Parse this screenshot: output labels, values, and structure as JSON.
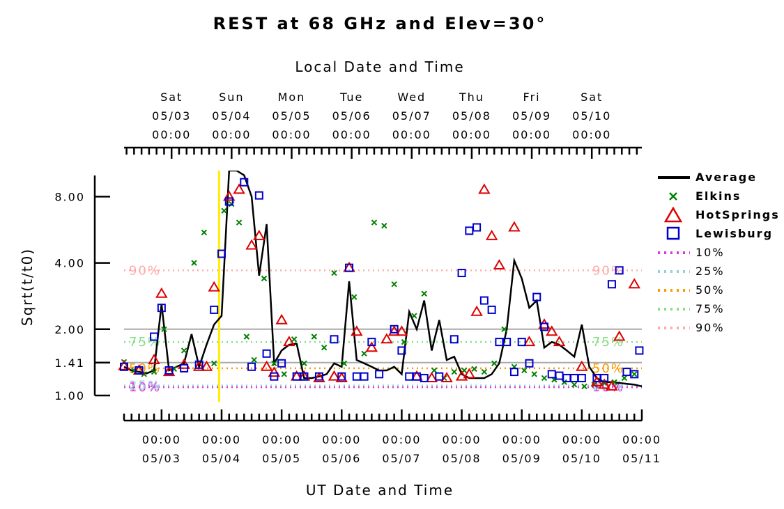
{
  "chart_data": {
    "type": "line",
    "title": "REST at 68 GHz and Elev=30°",
    "xlabel": "UT Date and Time",
    "x2label": "Local Date and Time",
    "ylabel": "Sqrt(t/t0)",
    "y_scale": "log",
    "ylim": [
      1.0,
      10.5
    ],
    "xlim": [
      "2025-05-02T09:00",
      "2025-05-11T00:00"
    ],
    "yticks": [
      {
        "value": 1.0,
        "label": "1.00"
      },
      {
        "value": 1.41,
        "label": "1.41"
      },
      {
        "value": 2.0,
        "label": "2.00"
      },
      {
        "value": 4.0,
        "label": "4.00"
      },
      {
        "value": 8.0,
        "label": "8.00"
      }
    ],
    "xticks_bottom": [
      {
        "x": "2025-05-03T00:00",
        "time": "00:00",
        "date": "05/03"
      },
      {
        "x": "2025-05-04T00:00",
        "time": "00:00",
        "date": "05/04"
      },
      {
        "x": "2025-05-05T00:00",
        "time": "00:00",
        "date": "05/05"
      },
      {
        "x": "2025-05-06T00:00",
        "time": "00:00",
        "date": "05/06"
      },
      {
        "x": "2025-05-07T00:00",
        "time": "00:00",
        "date": "05/07"
      },
      {
        "x": "2025-05-08T00:00",
        "time": "00:00",
        "date": "05/08"
      },
      {
        "x": "2025-05-09T00:00",
        "time": "00:00",
        "date": "05/09"
      },
      {
        "x": "2025-05-10T00:00",
        "time": "00:00",
        "date": "05/10"
      },
      {
        "x": "2025-05-11T00:00",
        "time": "00:00",
        "date": "05/11"
      }
    ],
    "xticks_top": [
      {
        "x": "2025-05-03T04:00",
        "day": "Sat",
        "date": "05/03",
        "time": "00:00"
      },
      {
        "x": "2025-05-04T04:00",
        "day": "Sun",
        "date": "05/04",
        "time": "00:00"
      },
      {
        "x": "2025-05-05T04:00",
        "day": "Mon",
        "date": "05/05",
        "time": "00:00"
      },
      {
        "x": "2025-05-06T04:00",
        "day": "Tue",
        "date": "05/06",
        "time": "00:00"
      },
      {
        "x": "2025-05-07T04:00",
        "day": "Wed",
        "date": "05/07",
        "time": "00:00"
      },
      {
        "x": "2025-05-08T04:00",
        "day": "Thu",
        "date": "05/08",
        "time": "00:00"
      },
      {
        "x": "2025-05-09T04:00",
        "day": "Fri",
        "date": "05/09",
        "time": "00:00"
      },
      {
        "x": "2025-05-10T04:00",
        "day": "Sat",
        "date": "05/10",
        "time": "00:00"
      }
    ],
    "gray_lines": [
      1.41,
      2.0
    ],
    "now_marker": "2025-05-03T23:00",
    "percentiles": [
      {
        "name": "10%",
        "label": "10%",
        "value": 1.09,
        "color": "#dd33dd"
      },
      {
        "name": "25%",
        "label": "25%",
        "value": 1.11,
        "color": "#99ccdd"
      },
      {
        "name": "50%",
        "label": "50%",
        "value": 1.33,
        "color": "#ff9900"
      },
      {
        "name": "75%",
        "label": "75%",
        "value": 1.75,
        "color": "#88dd88"
      },
      {
        "name": "90%",
        "label": "90%",
        "value": 3.7,
        "color": "#ffaaaa"
      }
    ],
    "series": [
      {
        "name": "Average",
        "marker": "line",
        "color": "#000000",
        "x": [
          "2025-05-02T09:00",
          "2025-05-02T12:00",
          "2025-05-02T15:00",
          "2025-05-02T18:00",
          "2025-05-02T21:00",
          "2025-05-03T00:00",
          "2025-05-03T03:00",
          "2025-05-03T06:00",
          "2025-05-03T09:00",
          "2025-05-03T12:00",
          "2025-05-03T15:00",
          "2025-05-03T18:00",
          "2025-05-03T21:00",
          "2025-05-04T00:00",
          "2025-05-04T03:00",
          "2025-05-04T06:00",
          "2025-05-04T09:00",
          "2025-05-04T12:00",
          "2025-05-04T15:00",
          "2025-05-04T18:00",
          "2025-05-04T21:00",
          "2025-05-05T00:00",
          "2025-05-05T03:00",
          "2025-05-05T06:00",
          "2025-05-05T09:00",
          "2025-05-05T12:00",
          "2025-05-05T15:00",
          "2025-05-05T18:00",
          "2025-05-05T21:00",
          "2025-05-06T00:00",
          "2025-05-06T03:00",
          "2025-05-06T06:00",
          "2025-05-06T09:00",
          "2025-05-06T12:00",
          "2025-05-06T15:00",
          "2025-05-06T18:00",
          "2025-05-06T21:00",
          "2025-05-07T00:00",
          "2025-05-07T03:00",
          "2025-05-07T06:00",
          "2025-05-07T09:00",
          "2025-05-07T12:00",
          "2025-05-07T15:00",
          "2025-05-07T18:00",
          "2025-05-07T21:00",
          "2025-05-08T00:00",
          "2025-05-08T03:00",
          "2025-05-08T06:00",
          "2025-05-08T09:00",
          "2025-05-08T12:00",
          "2025-05-08T15:00",
          "2025-05-08T18:00",
          "2025-05-08T21:00",
          "2025-05-09T00:00",
          "2025-05-09T03:00",
          "2025-05-09T06:00",
          "2025-05-09T09:00",
          "2025-05-09T12:00",
          "2025-05-09T15:00",
          "2025-05-09T18:00",
          "2025-05-09T21:00",
          "2025-05-10T00:00",
          "2025-05-10T03:00",
          "2025-05-10T06:00",
          "2025-05-10T09:00",
          "2025-05-10T12:00",
          "2025-05-10T15:00",
          "2025-05-10T18:00",
          "2025-05-10T21:00",
          "2025-05-11T00:00"
        ],
        "y": [
          1.35,
          1.3,
          1.28,
          1.26,
          1.3,
          2.6,
          1.3,
          1.35,
          1.4,
          1.9,
          1.35,
          1.7,
          2.1,
          2.3,
          10.5,
          10.5,
          10.0,
          8.0,
          3.5,
          6.0,
          1.4,
          1.6,
          1.7,
          1.72,
          1.2,
          1.2,
          1.22,
          1.25,
          1.4,
          1.35,
          3.3,
          1.45,
          1.4,
          1.35,
          1.3,
          1.3,
          1.35,
          1.25,
          2.4,
          2.0,
          2.7,
          1.6,
          2.2,
          1.45,
          1.5,
          1.25,
          1.2,
          1.2,
          1.2,
          1.25,
          1.4,
          2.0,
          4.1,
          3.4,
          2.5,
          2.7,
          1.65,
          1.75,
          1.7,
          1.6,
          1.5,
          2.1,
          1.35,
          1.2,
          1.15,
          1.15,
          1.14,
          1.13,
          1.12,
          1.1
        ]
      },
      {
        "name": "Elkins",
        "marker": "x",
        "color": "#008000",
        "x": [
          "2025-05-02T09:00",
          "2025-05-02T13:00",
          "2025-05-02T17:00",
          "2025-05-02T21:00",
          "2025-05-03T01:00",
          "2025-05-03T05:00",
          "2025-05-03T09:00",
          "2025-05-03T13:00",
          "2025-05-03T17:00",
          "2025-05-03T21:00",
          "2025-05-04T01:00",
          "2025-05-04T04:00",
          "2025-05-04T07:00",
          "2025-05-04T10:00",
          "2025-05-04T13:00",
          "2025-05-04T17:00",
          "2025-05-04T21:00",
          "2025-05-05T01:00",
          "2025-05-05T05:00",
          "2025-05-05T09:00",
          "2025-05-05T13:00",
          "2025-05-05T17:00",
          "2025-05-05T21:00",
          "2025-05-06T01:00",
          "2025-05-06T05:00",
          "2025-05-06T09:00",
          "2025-05-06T13:00",
          "2025-05-06T17:00",
          "2025-05-06T21:00",
          "2025-05-07T01:00",
          "2025-05-07T05:00",
          "2025-05-07T09:00",
          "2025-05-07T13:00",
          "2025-05-07T17:00",
          "2025-05-07T21:00",
          "2025-05-08T01:00",
          "2025-05-08T05:00",
          "2025-05-08T09:00",
          "2025-05-08T13:00",
          "2025-05-08T17:00",
          "2025-05-08T21:00",
          "2025-05-09T01:00",
          "2025-05-09T05:00",
          "2025-05-09T09:00",
          "2025-05-09T13:00",
          "2025-05-09T17:00",
          "2025-05-09T21:00",
          "2025-05-10T01:00",
          "2025-05-10T05:00",
          "2025-05-10T09:00",
          "2025-05-10T13:00",
          "2025-05-10T17:00",
          "2025-05-10T21:00"
        ],
        "y": [
          1.42,
          1.3,
          1.25,
          1.28,
          2.0,
          1.32,
          1.6,
          4.0,
          5.5,
          1.4,
          6.9,
          7.4,
          6.1,
          1.85,
          1.45,
          3.4,
          1.4,
          1.25,
          1.8,
          1.4,
          1.85,
          1.65,
          3.6,
          1.4,
          2.8,
          1.55,
          6.1,
          5.9,
          3.2,
          1.75,
          2.3,
          2.9,
          1.3,
          1.2,
          1.28,
          1.3,
          1.32,
          1.28,
          1.4,
          2.0,
          1.35,
          1.3,
          1.25,
          1.2,
          1.18,
          1.15,
          1.12,
          1.1,
          1.12,
          1.14,
          1.15,
          1.2,
          1.25
        ]
      },
      {
        "name": "HotSprings",
        "marker": "triangle",
        "color": "#dd0000",
        "x": [
          "2025-05-02T09:00",
          "2025-05-02T15:00",
          "2025-05-02T21:00",
          "2025-05-03T00:00",
          "2025-05-03T03:00",
          "2025-05-03T09:00",
          "2025-05-03T15:00",
          "2025-05-03T18:00",
          "2025-05-03T21:00",
          "2025-05-04T03:00",
          "2025-05-04T07:00",
          "2025-05-04T12:00",
          "2025-05-04T15:00",
          "2025-05-04T18:00",
          "2025-05-04T21:00",
          "2025-05-05T00:00",
          "2025-05-05T03:00",
          "2025-05-05T06:00",
          "2025-05-05T09:00",
          "2025-05-05T15:00",
          "2025-05-05T21:00",
          "2025-05-06T00:00",
          "2025-05-06T03:00",
          "2025-05-06T06:00",
          "2025-05-06T12:00",
          "2025-05-06T18:00",
          "2025-05-06T21:00",
          "2025-05-07T00:00",
          "2025-05-07T06:00",
          "2025-05-07T12:00",
          "2025-05-07T18:00",
          "2025-05-08T00:00",
          "2025-05-08T03:00",
          "2025-05-08T06:00",
          "2025-05-08T09:00",
          "2025-05-08T12:00",
          "2025-05-08T15:00",
          "2025-05-08T21:00",
          "2025-05-09T03:00",
          "2025-05-09T09:00",
          "2025-05-09T12:00",
          "2025-05-09T15:00",
          "2025-05-10T00:00",
          "2025-05-10T06:00",
          "2025-05-10T09:00",
          "2025-05-10T12:00",
          "2025-05-10T15:00",
          "2025-05-10T21:00"
        ],
        "y": [
          1.36,
          1.3,
          1.45,
          2.9,
          1.28,
          1.38,
          1.35,
          1.35,
          3.1,
          8.0,
          8.6,
          4.8,
          5.3,
          1.35,
          1.27,
          2.2,
          1.75,
          1.22,
          1.22,
          1.2,
          1.22,
          1.2,
          3.8,
          1.95,
          1.65,
          1.8,
          1.95,
          1.95,
          1.22,
          1.2,
          1.2,
          1.22,
          1.25,
          2.4,
          8.6,
          5.3,
          3.9,
          5.8,
          1.75,
          2.1,
          1.95,
          1.75,
          1.35,
          1.15,
          1.12,
          1.1,
          1.85,
          3.2
        ]
      },
      {
        "name": "Lewisburg",
        "marker": "square",
        "color": "#0000cc",
        "x": [
          "2025-05-02T09:00",
          "2025-05-02T15:00",
          "2025-05-02T21:00",
          "2025-05-03T00:00",
          "2025-05-03T03:00",
          "2025-05-03T09:00",
          "2025-05-03T15:00",
          "2025-05-03T21:00",
          "2025-05-04T00:00",
          "2025-05-04T03:00",
          "2025-05-04T09:00",
          "2025-05-04T12:00",
          "2025-05-04T15:00",
          "2025-05-04T18:00",
          "2025-05-04T21:00",
          "2025-05-05T00:00",
          "2025-05-05T06:00",
          "2025-05-05T09:00",
          "2025-05-05T15:00",
          "2025-05-05T21:00",
          "2025-05-06T00:00",
          "2025-05-06T03:00",
          "2025-05-06T06:00",
          "2025-05-06T09:00",
          "2025-05-06T12:00",
          "2025-05-06T15:00",
          "2025-05-06T21:00",
          "2025-05-07T00:00",
          "2025-05-07T03:00",
          "2025-05-07T06:00",
          "2025-05-07T09:00",
          "2025-05-07T15:00",
          "2025-05-07T21:00",
          "2025-05-08T00:00",
          "2025-05-08T03:00",
          "2025-05-08T06:00",
          "2025-05-08T09:00",
          "2025-05-08T12:00",
          "2025-05-08T15:00",
          "2025-05-08T18:00",
          "2025-05-08T21:00",
          "2025-05-09T00:00",
          "2025-05-09T03:00",
          "2025-05-09T06:00",
          "2025-05-09T09:00",
          "2025-05-09T12:00",
          "2025-05-09T15:00",
          "2025-05-09T18:00",
          "2025-05-09T21:00",
          "2025-05-10T00:00",
          "2025-05-10T06:00",
          "2025-05-10T09:00",
          "2025-05-10T12:00",
          "2025-05-10T15:00",
          "2025-05-10T18:00",
          "2025-05-10T21:00",
          "2025-05-10T23:00"
        ],
        "y": [
          1.35,
          1.3,
          1.85,
          2.5,
          1.3,
          1.33,
          1.38,
          2.45,
          4.4,
          7.6,
          9.3,
          1.35,
          8.1,
          1.55,
          1.22,
          1.4,
          1.22,
          1.22,
          1.22,
          1.8,
          1.22,
          3.8,
          1.22,
          1.22,
          1.75,
          1.25,
          2.0,
          1.6,
          1.22,
          1.22,
          1.2,
          1.22,
          1.8,
          3.6,
          5.6,
          5.8,
          2.7,
          2.45,
          1.75,
          1.75,
          1.28,
          1.75,
          1.4,
          2.8,
          2.05,
          1.25,
          1.23,
          1.2,
          1.2,
          1.2,
          1.2,
          1.2,
          3.2,
          3.7,
          1.28,
          1.25,
          1.6
        ]
      }
    ],
    "legend": {
      "position": "right"
    }
  }
}
